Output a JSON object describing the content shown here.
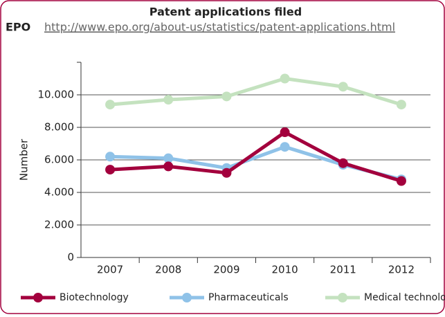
{
  "chart_data": {
    "type": "line",
    "title": "Patent applications filed",
    "source": "EPO",
    "source_url": "http://www.epo.org/about-us/statistics/patent-applications.html",
    "y_label": "Number",
    "categories": [
      "2007",
      "2008",
      "2009",
      "2010",
      "2011",
      "2012"
    ],
    "series": [
      {
        "name": "Biotechnology",
        "color": "#a3003d",
        "values": [
          5400,
          5600,
          5200,
          7700,
          5800,
          4700
        ]
      },
      {
        "name": "Pharmaceuticals",
        "color": "#8fc2e8",
        "values": [
          6200,
          6100,
          5500,
          6800,
          5700,
          4800
        ]
      },
      {
        "name": "Medical technology",
        "color": "#c4e2bf",
        "values": [
          9400,
          9700,
          9900,
          11000,
          10500,
          9400
        ]
      }
    ],
    "ylim": [
      0,
      12000
    ],
    "yticks": [
      0,
      {
        "value": 2000,
        "label": "2.000"
      },
      {
        "value": 4000,
        "label": "4.000"
      },
      {
        "value": 6000,
        "label": "6.000"
      },
      {
        "value": 8000,
        "label": "8.000"
      },
      {
        "value": 10000,
        "label": "10.000"
      }
    ],
    "grid": true
  }
}
